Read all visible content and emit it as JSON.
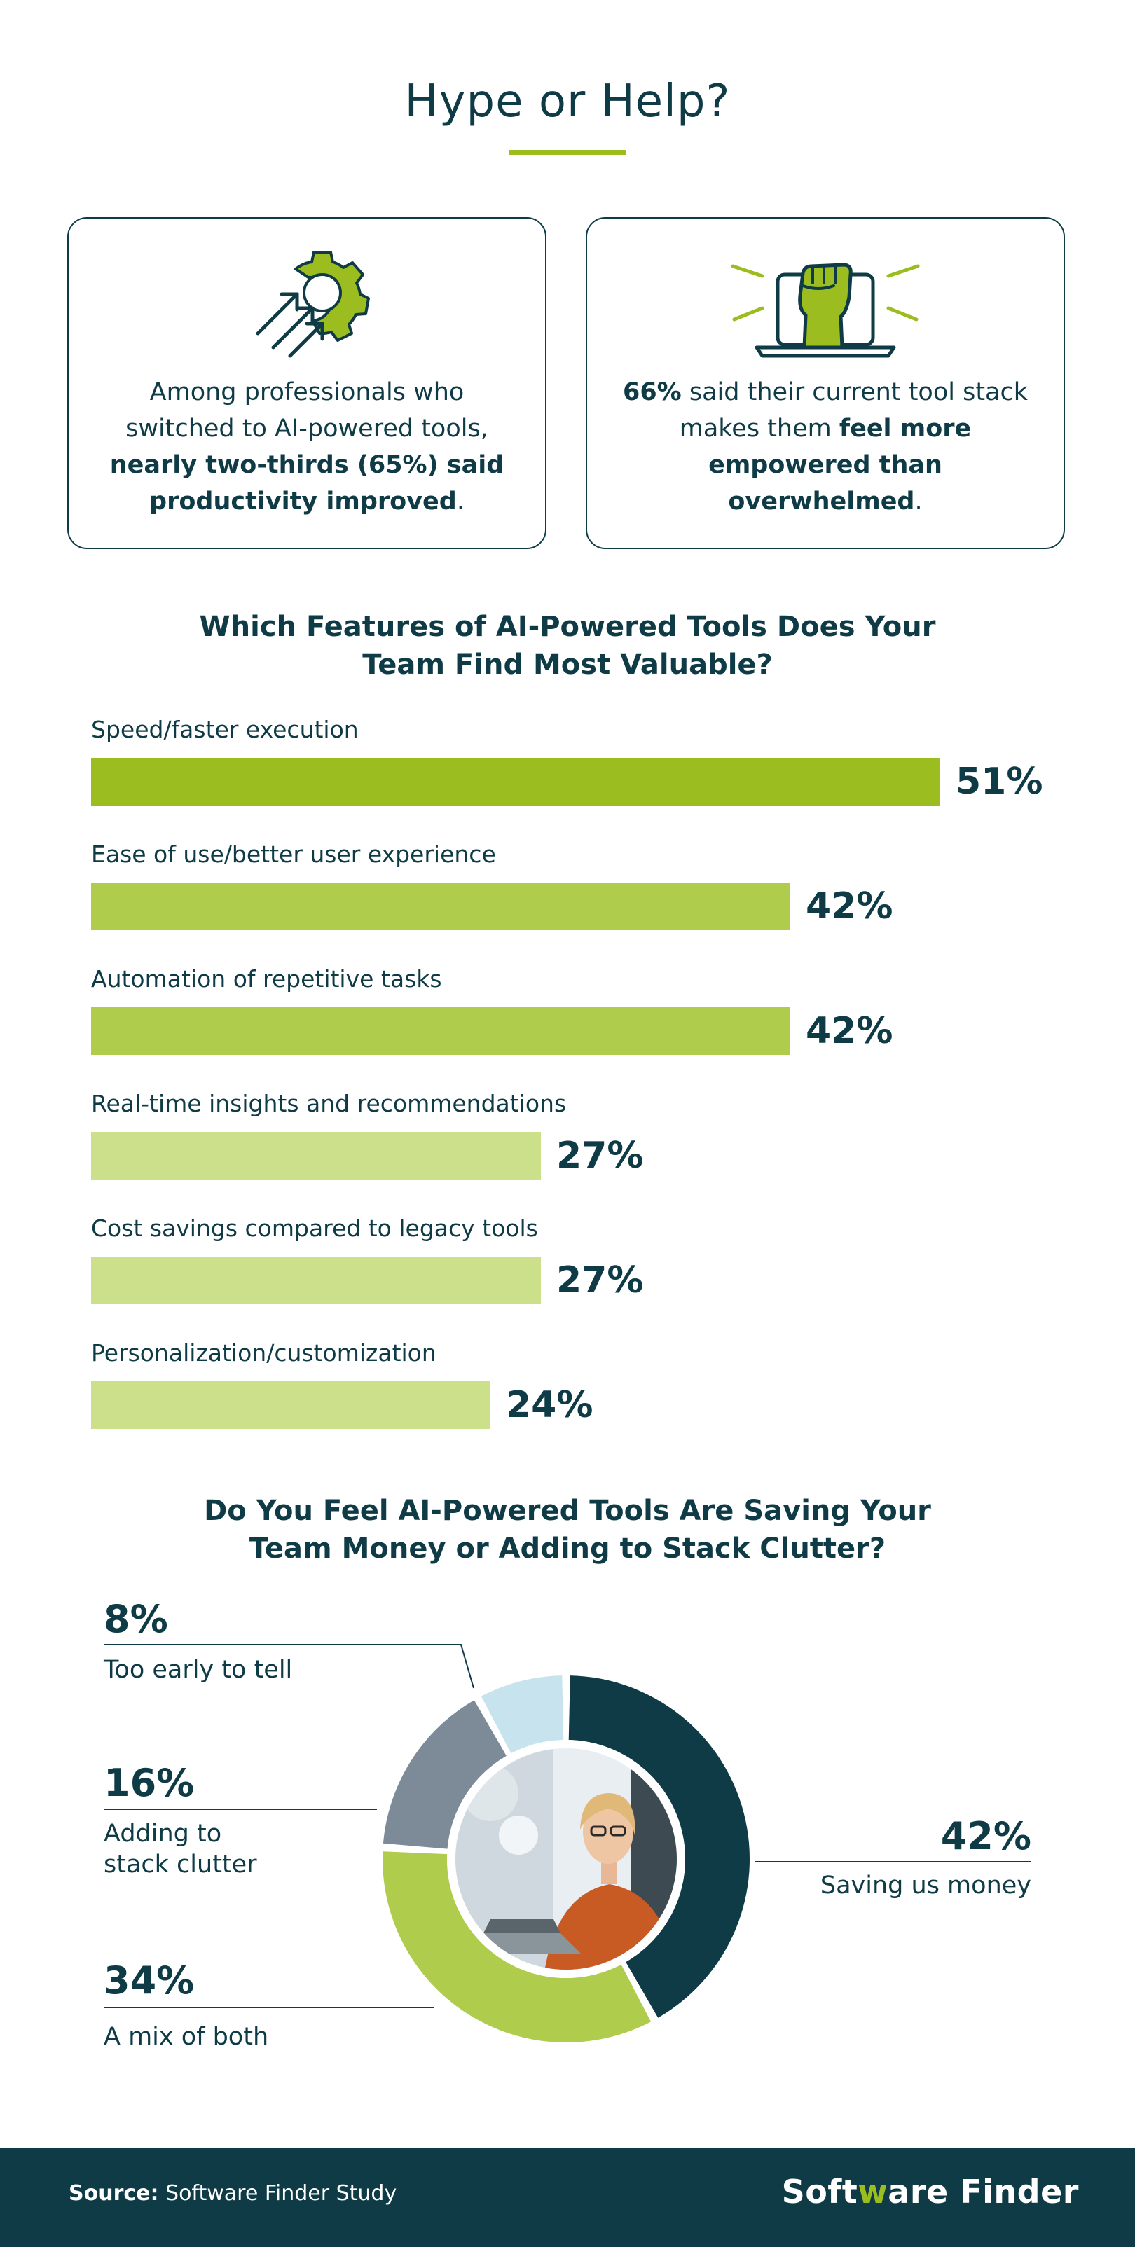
{
  "title": "Hype or Help?",
  "cards": {
    "left": {
      "text_pre": "Among professionals who switched to AI-powered tools, ",
      "text_bold": "nearly two-thirds (65%) said productivity improved",
      "text_post": "."
    },
    "right": {
      "bold1": "66%",
      "text_mid": " said their current tool stack makes them ",
      "bold2": "feel more empowered than overwhelmed",
      "text_post": "."
    }
  },
  "colors": {
    "dark": "#0e3b45",
    "green_dark": "#9bbd1f",
    "green_mid": "#afcc4c",
    "green_light": "#cce08c",
    "slate": "#7d8a97",
    "sky": "#c6e3ee"
  },
  "chart_data": [
    {
      "type": "bar",
      "title": "Which Features of AI-Powered Tools Does Your Team Find Most Valuable?",
      "title_lines": [
        "Which Features of AI-Powered Tools Does Your",
        "Team Find Most Valuable?"
      ],
      "categories": [
        "Speed/faster execution",
        "Ease of use/better user experience",
        "Automation of repetitive tasks",
        "Real-time insights and recommendations",
        "Cost savings compared to legacy tools",
        "Personalization/customization"
      ],
      "values": [
        51,
        42,
        42,
        27,
        27,
        24
      ],
      "value_labels": [
        "51%",
        "42%",
        "42%",
        "27%",
        "27%",
        "24%"
      ],
      "xlim": [
        0,
        51
      ],
      "unit": "%",
      "orientation": "horizontal"
    },
    {
      "type": "pie",
      "variant": "donut",
      "title": "Do You Feel AI-Powered Tools Are Saving Your Team Money or Adding to Stack Clutter?",
      "title_lines": [
        "Do You Feel AI-Powered Tools Are Saving Your",
        "Team Money or Adding to Stack Clutter?"
      ],
      "slices": [
        {
          "label": "Saving us money",
          "value": 42,
          "value_label": "42%"
        },
        {
          "label": "A mix of both",
          "value": 34,
          "value_label": "34%"
        },
        {
          "label": "Adding to stack clutter",
          "label_lines": [
            "Adding to",
            "stack clutter"
          ],
          "value": 16,
          "value_label": "16%"
        },
        {
          "label": "Too early to tell",
          "value": 8,
          "value_label": "8%"
        }
      ]
    }
  ],
  "footer": {
    "source_label": "Source:",
    "source_text": " Software Finder Study",
    "logo_part1": "Soft",
    "logo_accent": "w",
    "logo_part2": "are Finder"
  }
}
